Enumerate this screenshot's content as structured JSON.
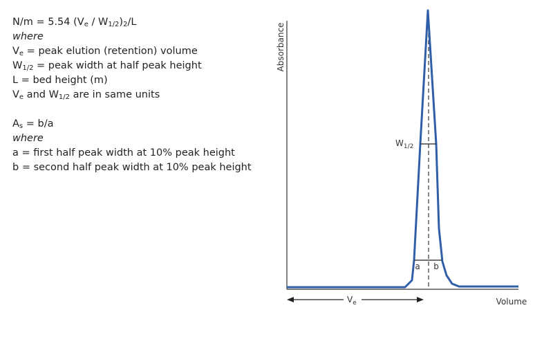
{
  "text_blocks": [
    {
      "lines": [
        {
          "runs": [
            "N/m = 5.54 (V",
            {
              "sub": "e"
            },
            " / W",
            {
              "sub": "1/2"
            },
            ")",
            {
              "sub": "2"
            },
            "/L"
          ]
        },
        {
          "italic": true,
          "runs": [
            "where"
          ]
        },
        {
          "runs": [
            "V",
            {
              "sub": "e"
            },
            " = peak elution (retention) volume"
          ]
        },
        {
          "runs": [
            "W",
            {
              "sub": "1/2"
            },
            " = peak width at half peak height"
          ]
        },
        {
          "runs": [
            "L = bed height (m)"
          ]
        },
        {
          "runs": [
            "V",
            {
              "sub": "e"
            },
            " and W",
            {
              "sub": "1/2"
            },
            " are in same units"
          ]
        }
      ]
    },
    {
      "lines": [
        {
          "runs": [
            "A",
            {
              "sub": "s"
            },
            " = b/a"
          ]
        },
        {
          "italic": true,
          "runs": [
            "where"
          ]
        },
        {
          "runs": [
            "a = first half peak width at 10% peak height"
          ]
        },
        {
          "runs": [
            "b = second half peak width at 10% peak height"
          ]
        }
      ]
    }
  ],
  "diagram": {
    "y_axis_label": "Absorbance",
    "x_axis_label": "Volume",
    "half_width_label": {
      "runs": [
        "W",
        {
          "sub": "1/2"
        }
      ]
    },
    "retention_label": {
      "runs": [
        "V",
        {
          "sub": "e"
        }
      ]
    },
    "a_label": "a",
    "b_label": "b"
  }
}
